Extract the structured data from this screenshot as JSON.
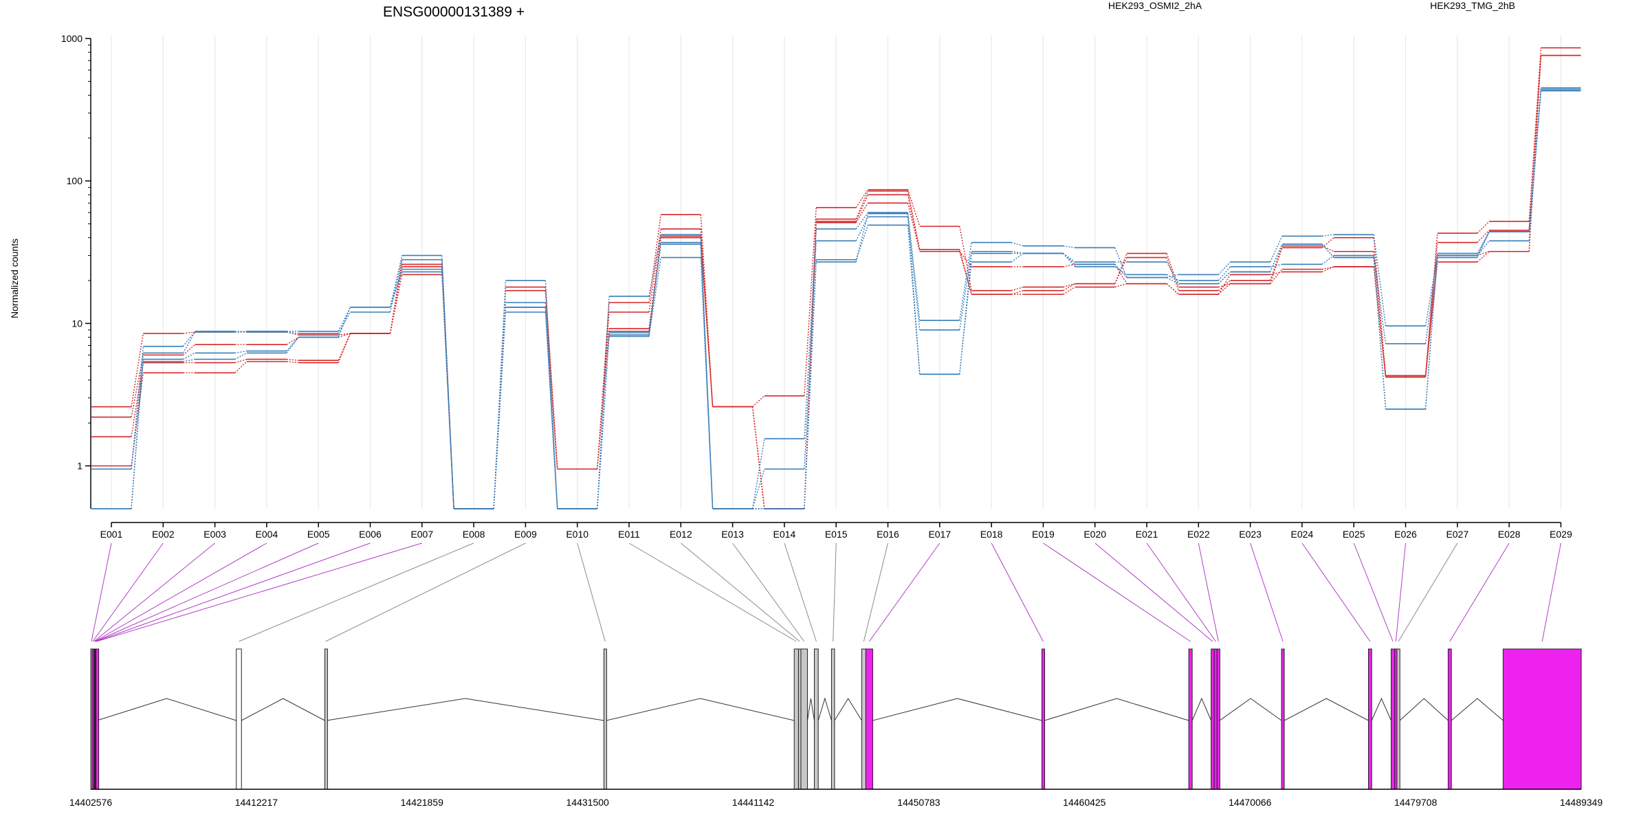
{
  "chart_data": {
    "type": "line",
    "title": "ENSG00000131389 +",
    "ylabel": "Normalized counts",
    "xlabel": "",
    "y_scale": "log",
    "ylim": [
      0.5,
      1000
    ],
    "y_ticks": [
      {
        "value": 1,
        "label": "1"
      },
      {
        "value": 10,
        "label": "10"
      },
      {
        "value": 100,
        "label": "100"
      },
      {
        "value": 1000,
        "label": "1000"
      }
    ],
    "grid": "vertical",
    "legend_placement": "top",
    "categories": [
      "E001",
      "E002",
      "E003",
      "E004",
      "E005",
      "E006",
      "E007",
      "E008",
      "E009",
      "E010",
      "E011",
      "E012",
      "E013",
      "E014",
      "E015",
      "E016",
      "E017",
      "E018",
      "E019",
      "E020",
      "E021",
      "E022",
      "E023",
      "E024",
      "E025",
      "E026",
      "E027",
      "E028",
      "E029"
    ],
    "series": [
      {
        "name": "HEK293_OSMI2_2hA",
        "group": "red",
        "values": [
          2.6,
          8.5,
          8.7,
          8.7,
          8.3,
          8.5,
          26,
          0.5,
          18,
          0.95,
          14,
          58,
          2.6,
          3.1,
          65,
          87,
          48,
          17,
          18,
          19,
          31,
          18,
          19,
          34,
          40,
          4.3,
          43,
          52,
          860
        ]
      },
      {
        "name": "HEK293_OSMI2_2hA",
        "group": "red",
        "values": [
          2.2,
          6.0,
          7.1,
          7.1,
          8.0,
          8.5,
          28,
          0.5,
          17,
          0.95,
          12,
          46,
          2.6,
          0.5,
          54,
          85,
          33,
          16,
          17,
          19,
          29,
          17,
          20,
          35,
          32,
          4.2,
          37,
          45,
          760
        ]
      },
      {
        "name": "HEK293_OSMI2_2hA",
        "group": "red",
        "values": [
          1.6,
          5.3,
          5.3,
          5.6,
          5.5,
          8.5,
          25,
          0.5,
          13,
          0.95,
          9.2,
          41,
          2.6,
          0.5,
          51,
          70,
          32,
          25,
          25,
          26,
          19,
          16,
          22,
          23,
          25,
          4.2,
          27,
          32,
          760
        ]
      },
      {
        "name": "HEK293_OSMI2_2hA",
        "group": "red",
        "values": [
          1.0,
          4.5,
          4.5,
          5.4,
          5.3,
          8.5,
          22,
          0.5,
          13,
          0.95,
          8.8,
          40,
          2.6,
          0.5,
          52,
          80,
          32,
          16,
          16,
          18,
          19,
          16,
          19,
          24,
          25,
          4.3,
          30,
          32,
          760
        ]
      },
      {
        "name": "HEK293_TMG_2hB",
        "group": "blue",
        "values": [
          0.95,
          6.9,
          8.8,
          8.8,
          8.8,
          13,
          30,
          0.5,
          20,
          0.5,
          15.5,
          42,
          0.5,
          1.55,
          46,
          60,
          10.5,
          37,
          35,
          34,
          21,
          22,
          27,
          41,
          42,
          9.6,
          30,
          44,
          440
        ]
      },
      {
        "name": "HEK293_TMG_2hB",
        "group": "blue",
        "values": [
          0.5,
          6.2,
          8.7,
          8.7,
          8.5,
          12,
          28,
          0.5,
          14,
          0.5,
          8.6,
          37,
          0.5,
          0.95,
          38,
          56,
          9.0,
          32,
          31,
          25,
          22,
          20,
          25,
          26,
          30,
          7.2,
          30,
          38,
          450
        ]
      },
      {
        "name": "HEK293_TMG_2hB",
        "group": "blue",
        "values": [
          0.5,
          5.6,
          6.2,
          6.4,
          8.0,
          13,
          23,
          0.5,
          13,
          0.5,
          8.1,
          29,
          0.5,
          0.5,
          28,
          49,
          4.4,
          27,
          31,
          27,
          27,
          19,
          23,
          36,
          29,
          2.5,
          31,
          44,
          430
        ]
      },
      {
        "name": "HEK293_TMG_2hB",
        "group": "blue",
        "values": [
          0.95,
          5.4,
          5.6,
          6.2,
          8.0,
          13,
          24,
          0.5,
          12,
          0.5,
          8.3,
          36,
          0.5,
          0.5,
          27,
          59,
          4.4,
          31,
          31,
          26,
          21,
          19,
          23,
          36,
          29,
          2.5,
          29,
          44,
          430
        ]
      }
    ],
    "legend": [
      {
        "label": "HEK293_OSMI2_2hA",
        "color": "#d62728"
      },
      {
        "label": "HEK293_TMG_2hB",
        "color": "#377eb8"
      }
    ],
    "colors": {
      "red": "#d62728",
      "blue": "#377eb8",
      "exon_magenta": "#ee22ee",
      "exon_gray": "#c8c8c8",
      "link_magenta": "#b03dc4",
      "link_gray": "#8a8a8a",
      "grid": "#e8e8ee"
    },
    "gene_model": {
      "coord_range": [
        14402576,
        14489349
      ],
      "coord_ticks": [
        "14402576",
        "14412217",
        "14421859",
        "14431500",
        "14441142",
        "14450783",
        "14460425",
        "14470066",
        "14479708",
        "14489349"
      ],
      "exons": [
        {
          "id": "E001",
          "start": 14402576,
          "end": 14402650,
          "style": "gray",
          "linked": "magenta"
        },
        {
          "id": "E002",
          "start": 14402650,
          "end": 14402740,
          "style": "magenta",
          "linked": "magenta"
        },
        {
          "id": "E003",
          "start": 14402740,
          "end": 14402790,
          "style": "magenta",
          "linked": "magenta"
        },
        {
          "id": "E004",
          "start": 14402790,
          "end": 14402820,
          "style": "magenta",
          "linked": "magenta"
        },
        {
          "id": "E005",
          "start": 14402820,
          "end": 14402850,
          "style": "magenta",
          "linked": "magenta"
        },
        {
          "id": "E006",
          "start": 14402850,
          "end": 14402880,
          "style": "magenta",
          "linked": "magenta"
        },
        {
          "id": "E007",
          "start": 14402880,
          "end": 14402940,
          "style": "magenta",
          "linked": "magenta"
        },
        {
          "id": "E008",
          "start": 14411050,
          "end": 14411350,
          "style": "white",
          "linked": "gray"
        },
        {
          "id": "E009",
          "start": 14416200,
          "end": 14416300,
          "style": "gray",
          "linked": "gray"
        },
        {
          "id": "E010",
          "start": 14432450,
          "end": 14432600,
          "style": "gray",
          "linked": "gray"
        },
        {
          "id": "E011",
          "start": 14443530,
          "end": 14443780,
          "style": "gray",
          "linked": "gray"
        },
        {
          "id": "E012",
          "start": 14443780,
          "end": 14443920,
          "style": "gray",
          "linked": "gray"
        },
        {
          "id": "E013",
          "start": 14443920,
          "end": 14444300,
          "style": "gray",
          "linked": "gray"
        },
        {
          "id": "E014",
          "start": 14444700,
          "end": 14444930,
          "style": "gray",
          "linked": "gray"
        },
        {
          "id": "E015",
          "start": 14445700,
          "end": 14445880,
          "style": "gray",
          "linked": "gray"
        },
        {
          "id": "E016",
          "start": 14447460,
          "end": 14447700,
          "style": "gray",
          "linked": "gray"
        },
        {
          "id": "E017",
          "start": 14447700,
          "end": 14448100,
          "style": "magenta",
          "linked": "magenta"
        },
        {
          "id": "E018",
          "start": 14457950,
          "end": 14458100,
          "style": "magenta",
          "linked": "magenta"
        },
        {
          "id": "E019",
          "start": 14466500,
          "end": 14466700,
          "style": "magenta",
          "linked": "magenta"
        },
        {
          "id": "E020",
          "start": 14467800,
          "end": 14467980,
          "style": "magenta",
          "linked": "magenta"
        },
        {
          "id": "E021",
          "start": 14467980,
          "end": 14468150,
          "style": "magenta",
          "linked": "magenta"
        },
        {
          "id": "E022",
          "start": 14468150,
          "end": 14468300,
          "style": "magenta",
          "linked": "magenta"
        },
        {
          "id": "E023",
          "start": 14471900,
          "end": 14472060,
          "style": "magenta",
          "linked": "magenta"
        },
        {
          "id": "E024",
          "start": 14476960,
          "end": 14477150,
          "style": "magenta",
          "linked": "magenta"
        },
        {
          "id": "E025",
          "start": 14478280,
          "end": 14478490,
          "style": "magenta",
          "linked": "magenta"
        },
        {
          "id": "E026",
          "start": 14478490,
          "end": 14478620,
          "style": "magenta",
          "linked": "magenta"
        },
        {
          "id": "E027",
          "start": 14478620,
          "end": 14478790,
          "style": "gray",
          "linked": "gray"
        },
        {
          "id": "E028",
          "start": 14481600,
          "end": 14481790,
          "style": "magenta",
          "linked": "magenta"
        },
        {
          "id": "E029",
          "start": 14484800,
          "end": 14489349,
          "style": "magenta",
          "linked": "magenta"
        }
      ]
    }
  }
}
